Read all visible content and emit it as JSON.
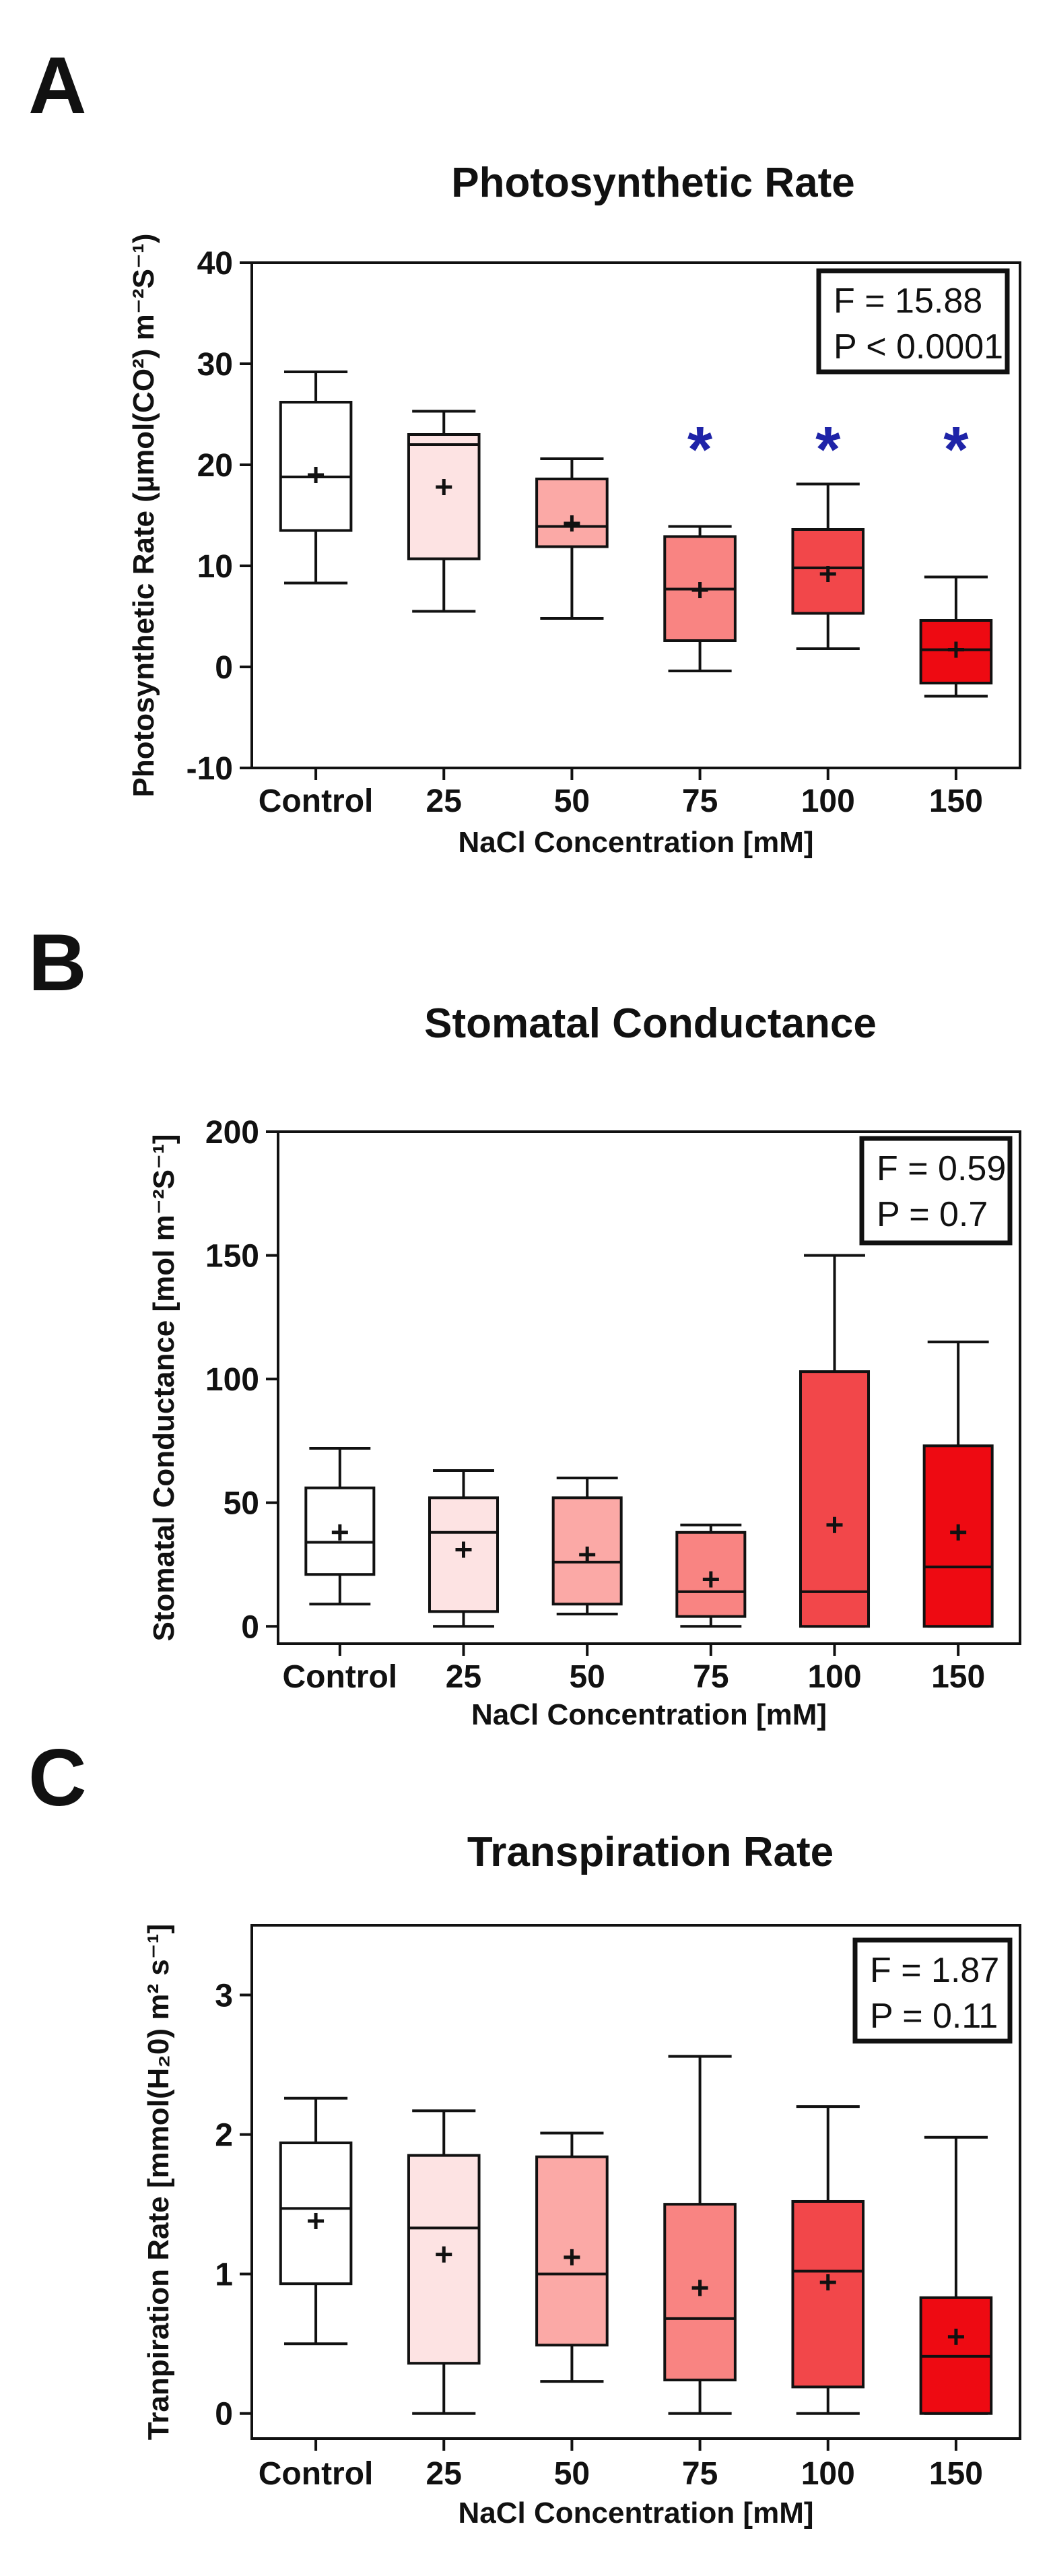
{
  "chart_data": [
    {
      "panel_id": "A",
      "type": "box",
      "title": "Photosynthetic Rate",
      "xlabel": "NaCl Concentration [mM]",
      "ylabel": "Photosynthetic Rate (µmol(CO²) m⁻²S⁻¹)",
      "ylim": [
        -10,
        40
      ],
      "yticks": [
        -10,
        0,
        10,
        20,
        30,
        40
      ],
      "categories": [
        "Control",
        "25",
        "50",
        "75",
        "100",
        "150"
      ],
      "colors": [
        "#ffffff",
        "#fde3e3",
        "#fba9a6",
        "#f98482",
        "#f2474a",
        "#ee0a12"
      ],
      "boxes": [
        {
          "min": 8.3,
          "q1": 13.5,
          "median": 18.8,
          "q3": 26.2,
          "max": 29.2,
          "mean": 19.0
        },
        {
          "min": 5.5,
          "q1": 10.7,
          "median": 22.0,
          "q3": 23.0,
          "max": 25.3,
          "mean": 17.8
        },
        {
          "min": 4.8,
          "q1": 11.9,
          "median": 13.9,
          "q3": 18.6,
          "max": 20.6,
          "mean": 14.2
        },
        {
          "min": -0.4,
          "q1": 2.6,
          "median": 7.7,
          "q3": 12.9,
          "max": 13.9,
          "mean": 7.6
        },
        {
          "min": 1.8,
          "q1": 5.3,
          "median": 9.8,
          "q3": 13.6,
          "max": 18.1,
          "mean": 9.2
        },
        {
          "min": -2.9,
          "q1": -1.6,
          "median": 1.7,
          "q3": 4.6,
          "max": 8.9,
          "mean": 1.7
        }
      ],
      "significance": [
        "",
        "",
        "",
        "*",
        "*",
        "*"
      ],
      "stats": {
        "line1": "F = 15.88",
        "line2": "P < 0.0001"
      }
    },
    {
      "panel_id": "B",
      "type": "box",
      "title": "Stomatal Conductance",
      "xlabel": "NaCl Concentration [mM]",
      "ylabel": "Stomatal Conductance [mol m⁻²S⁻¹]",
      "ylim": [
        -7,
        200
      ],
      "yticks": [
        0,
        50,
        100,
        150,
        200
      ],
      "categories": [
        "Control",
        "25",
        "50",
        "75",
        "100",
        "150"
      ],
      "colors": [
        "#ffffff",
        "#fde3e3",
        "#fba9a6",
        "#f98482",
        "#f2474a",
        "#ee0a12"
      ],
      "boxes": [
        {
          "min": 9,
          "q1": 21,
          "median": 34,
          "q3": 56,
          "max": 72,
          "mean": 38
        },
        {
          "min": 0,
          "q1": 6,
          "median": 38,
          "q3": 52,
          "max": 63,
          "mean": 31
        },
        {
          "min": 5,
          "q1": 9,
          "median": 26,
          "q3": 52,
          "max": 60,
          "mean": 29
        },
        {
          "min": 0,
          "q1": 4,
          "median": 14,
          "q3": 38,
          "max": 41,
          "mean": 19
        },
        {
          "min": 0,
          "q1": 0,
          "median": 14,
          "q3": 103,
          "max": 150,
          "mean": 41
        },
        {
          "min": 0,
          "q1": 0,
          "median": 24,
          "q3": 73,
          "max": 115,
          "mean": 38
        }
      ],
      "significance": [
        "",
        "",
        "",
        "",
        "",
        ""
      ],
      "stats": {
        "line1": "F = 0.59",
        "line2": "P = 0.7"
      }
    },
    {
      "panel_id": "C",
      "type": "box",
      "title": "Transpiration Rate",
      "xlabel": "NaCl Concentration [mM]",
      "ylabel": "Tranpiration Rate [mmol(H₂0) m² s⁻¹]",
      "ylim": [
        -0.18,
        3.5
      ],
      "yticks": [
        0,
        1,
        2,
        3
      ],
      "categories": [
        "Control",
        "25",
        "50",
        "75",
        "100",
        "150"
      ],
      "colors": [
        "#ffffff",
        "#fde3e3",
        "#fba9a6",
        "#f98482",
        "#f2474a",
        "#ee0a12"
      ],
      "boxes": [
        {
          "min": 0.5,
          "q1": 0.93,
          "median": 1.47,
          "q3": 1.94,
          "max": 2.26,
          "mean": 1.38
        },
        {
          "min": 0.0,
          "q1": 0.36,
          "median": 1.33,
          "q3": 1.85,
          "max": 2.17,
          "mean": 1.14
        },
        {
          "min": 0.23,
          "q1": 0.49,
          "median": 1.0,
          "q3": 1.84,
          "max": 2.01,
          "mean": 1.12
        },
        {
          "min": 0.0,
          "q1": 0.24,
          "median": 0.68,
          "q3": 1.5,
          "max": 2.56,
          "mean": 0.9
        },
        {
          "min": 0.0,
          "q1": 0.19,
          "median": 1.02,
          "q3": 1.52,
          "max": 2.2,
          "mean": 0.94
        },
        {
          "min": 0.0,
          "q1": 0.0,
          "median": 0.41,
          "q3": 0.83,
          "max": 1.98,
          "mean": 0.55
        }
      ],
      "significance": [
        "",
        "",
        "",
        "",
        "",
        ""
      ],
      "stats": {
        "line1": "F = 1.87",
        "line2": "P = 0.11"
      }
    }
  ]
}
